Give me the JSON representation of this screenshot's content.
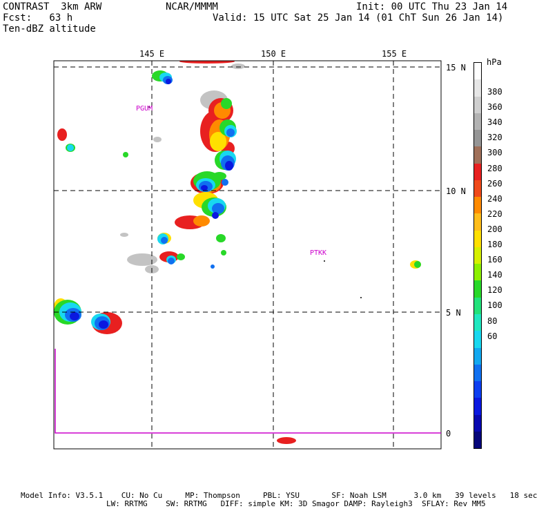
{
  "header": {
    "model": "CONTRAST  3km ARW",
    "org": "NCAR/MMMM",
    "init": "Init: 00 UTC Thu 23 Jan 14",
    "fcst": "Fcst:   63 h",
    "valid": "Valid: 15 UTC Sat 25 Jan 14 (01 ChT Sun 26 Jan 14)",
    "field": "Ten-dBZ altitude"
  },
  "map": {
    "lon_labels": [
      "145 E",
      "150 E",
      "155 E"
    ],
    "lat_labels": [
      "15 N",
      "10 N",
      "5 N",
      "0"
    ],
    "stations": [
      "PGUM",
      "PTKK"
    ],
    "boundary_color": "#cc00cc",
    "label_color": "#cc00cc"
  },
  "colorbar": {
    "unit": "hPa",
    "labels": [
      "380",
      "360",
      "340",
      "320",
      "300",
      "280",
      "260",
      "240",
      "220",
      "200",
      "180",
      "160",
      "140",
      "120",
      "100",
      "80",
      "60"
    ],
    "colors": [
      "#ffffff",
      "#e6e6e6",
      "#cfcfcf",
      "#b3b3b3",
      "#969696",
      "#a0705a",
      "#e82020",
      "#f04a1a",
      "#ff8a00",
      "#ffbd1a",
      "#ffe000",
      "#d6f000",
      "#8cf000",
      "#28d828",
      "#22e27a",
      "#20e8c0",
      "#18d8f0",
      "#12a8f0",
      "#1070f0",
      "#0c3ef0",
      "#0a18e0",
      "#0808b0",
      "#06067a"
    ]
  },
  "footer": {
    "line1": "Model Info: V3.5.1    CU: No Cu     MP: Thompson     PBL: YSU       SF: Noah LSM      3.0 km   39 levels   18 sec",
    "line2": "LW: RRTMG    SW: RRTMG   DIFF: simple KM: 3D Smagor DAMP: Rayleigh3  SFLAY: Rev MM5"
  }
}
